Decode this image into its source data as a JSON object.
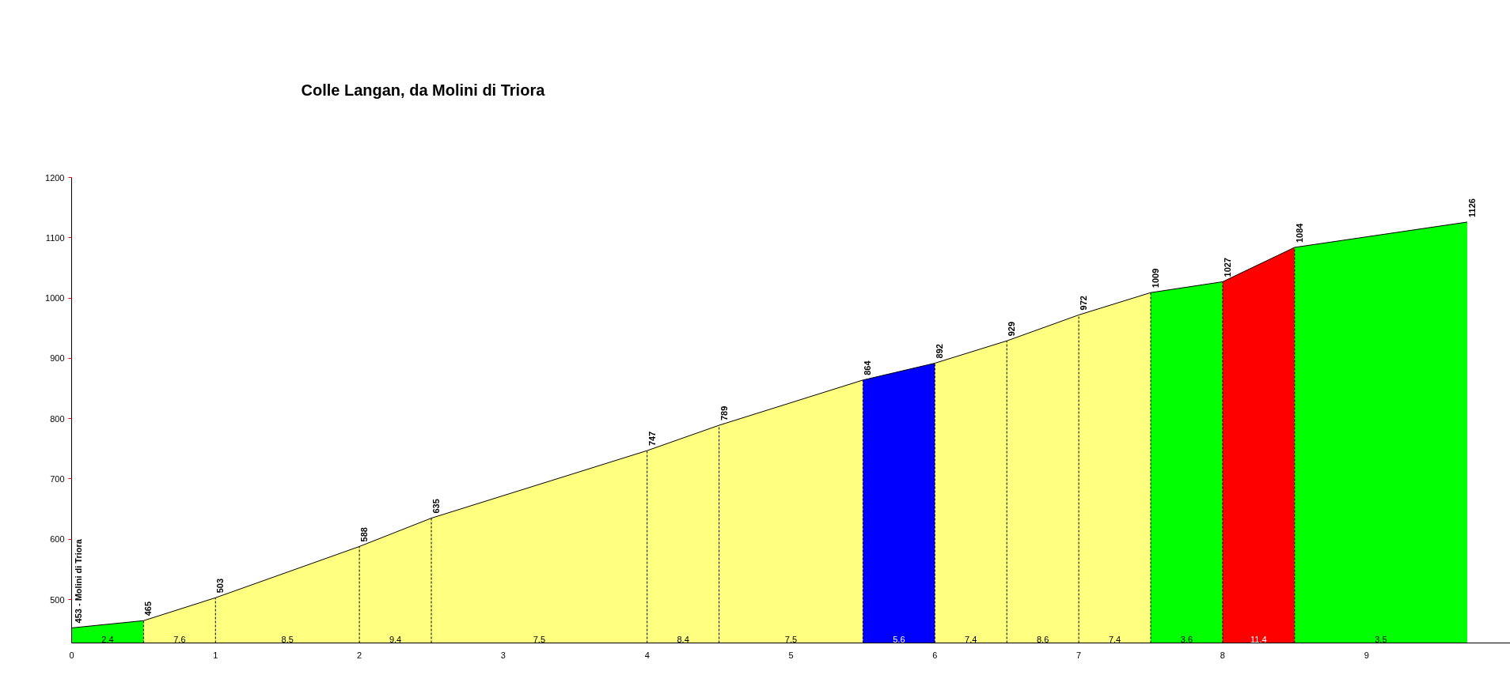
{
  "chart_data": {
    "type": "area",
    "title": "Colle Langan, da Molini di Triora",
    "xlim": [
      0,
      10
    ],
    "xticks": [
      0,
      1,
      2,
      3,
      4,
      5,
      6,
      7,
      8,
      9
    ],
    "ylim": [
      428,
      1200
    ],
    "yticks": [
      500,
      600,
      700,
      800,
      900,
      1000,
      1100,
      1200
    ],
    "series": [
      {
        "color": "#00ff00",
        "x": [
          0,
          0.5
        ],
        "values": [
          453,
          465
        ]
      },
      {
        "color": "#ffff80",
        "x": [
          0.5,
          1
        ],
        "values": [
          465,
          503
        ]
      },
      {
        "color": "#ffff80",
        "x": [
          1,
          2
        ],
        "values": [
          503,
          588
        ]
      },
      {
        "color": "#ffff80",
        "x": [
          2,
          2.5
        ],
        "values": [
          588,
          635
        ]
      },
      {
        "color": "#ffff80",
        "x": [
          2.5,
          4
        ],
        "values": [
          635,
          747
        ]
      },
      {
        "color": "#ffff80",
        "x": [
          4,
          4.5
        ],
        "values": [
          747,
          789
        ]
      },
      {
        "color": "#ffff80",
        "x": [
          4.5,
          5.5
        ],
        "values": [
          789,
          864
        ]
      },
      {
        "color": "#0000ff",
        "x": [
          5.5,
          6
        ],
        "values": [
          864,
          892
        ]
      },
      {
        "color": "#ffff80",
        "x": [
          6,
          6.5
        ],
        "values": [
          892,
          929
        ]
      },
      {
        "color": "#ffff80",
        "x": [
          6.5,
          7
        ],
        "values": [
          929,
          972
        ]
      },
      {
        "color": "#ffff80",
        "x": [
          7,
          7.5
        ],
        "values": [
          972,
          1009
        ]
      },
      {
        "color": "#00ff00",
        "x": [
          7.5,
          8
        ],
        "values": [
          1009,
          1027
        ]
      },
      {
        "color": "#ff0000",
        "x": [
          8,
          8.5
        ],
        "values": [
          1027,
          1084
        ]
      },
      {
        "color": "#00ff00",
        "x": [
          8.5,
          9.7
        ],
        "values": [
          1084,
          1126
        ]
      }
    ],
    "annotations": [
      {
        "text": "453 - Molini di Triora",
        "x": 0,
        "y": 453
      },
      {
        "text": "465",
        "x": 0.5,
        "y": 465
      },
      {
        "text": "503",
        "x": 1,
        "y": 503
      },
      {
        "text": "588",
        "x": 2,
        "y": 588
      },
      {
        "text": "635",
        "x": 2.5,
        "y": 635
      },
      {
        "text": "747",
        "x": 4,
        "y": 747
      },
      {
        "text": "789",
        "x": 4.5,
        "y": 789
      },
      {
        "text": "864",
        "x": 5.5,
        "y": 864
      },
      {
        "text": "892",
        "x": 6,
        "y": 892
      },
      {
        "text": "929",
        "x": 6.5,
        "y": 929
      },
      {
        "text": "972",
        "x": 7,
        "y": 972
      },
      {
        "text": "1009",
        "x": 7.5,
        "y": 1009
      },
      {
        "text": "1027",
        "x": 8,
        "y": 1027
      },
      {
        "text": "1084",
        "x": 8.5,
        "y": 1084
      },
      {
        "text": "1126",
        "x": 9.7,
        "y": 1126
      },
      {
        "text": "2.4",
        "x": 0.25,
        "y": 428
      },
      {
        "text": "7.6",
        "x": 0.75,
        "y": 428
      },
      {
        "text": "8.5",
        "x": 1.5,
        "y": 428
      },
      {
        "text": "9.4",
        "x": 2.25,
        "y": 428
      },
      {
        "text": "7.5",
        "x": 3.25,
        "y": 428
      },
      {
        "text": "8.4",
        "x": 4.25,
        "y": 428
      },
      {
        "text": "7.5",
        "x": 5,
        "y": 428
      },
      {
        "text": "5.6",
        "x": 5.75,
        "y": 428
      },
      {
        "text": "7.4",
        "x": 6.25,
        "y": 428
      },
      {
        "text": "8.6",
        "x": 6.75,
        "y": 428
      },
      {
        "text": "7.4",
        "x": 7.25,
        "y": 428
      },
      {
        "text": "3.6",
        "x": 7.75,
        "y": 428
      },
      {
        "text": "11.4",
        "x": 8.25,
        "y": 428
      },
      {
        "text": "3.5",
        "x": 9.1,
        "y": 428
      }
    ]
  }
}
